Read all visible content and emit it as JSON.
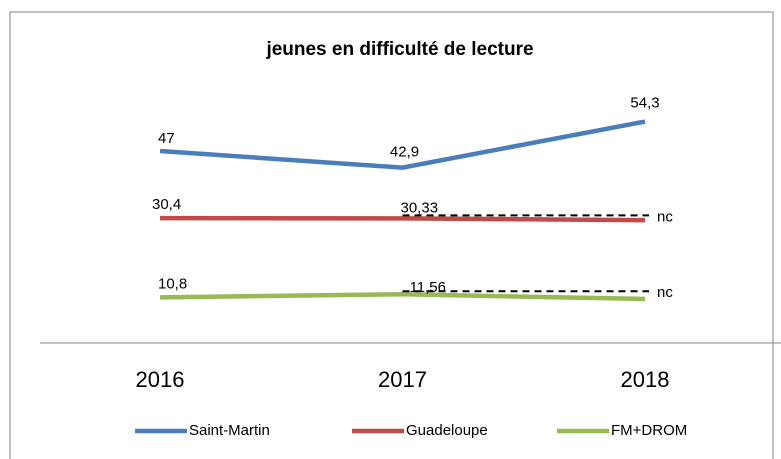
{
  "chart_data": {
    "type": "line",
    "title": "jeunes en difficulté de lecture",
    "categories": [
      "2016",
      "2017",
      "2018"
    ],
    "ylim": [
      0,
      60
    ],
    "series": [
      {
        "name": "Saint-Martin",
        "color": "#4a7ebb",
        "values": [
          47,
          42.9,
          54.3
        ],
        "value_labels": [
          "47",
          "42,9",
          "54,3"
        ]
      },
      {
        "name": "Guadeloupe",
        "color": "#be4b48",
        "values": [
          30.4,
          30.33,
          29.9
        ],
        "value_labels": [
          "30,4",
          "30,33",
          null
        ]
      },
      {
        "name": "FM+DROM",
        "color": "#98b954",
        "values": [
          10.8,
          11.56,
          10.4
        ],
        "value_labels": [
          "10,8",
          "11,56",
          null
        ]
      }
    ],
    "annotations": [
      {
        "text": "nc",
        "series": 1,
        "value": 30.33
      },
      {
        "text": "nc",
        "series": 2,
        "value": 11.56
      }
    ]
  }
}
